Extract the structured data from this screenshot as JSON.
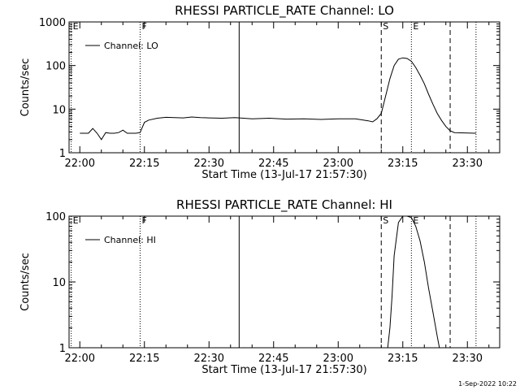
{
  "timestamp": "1-Sep-2022 10:22",
  "chart_data": [
    {
      "type": "line",
      "title": "RHESSI PARTICLE_RATE Channel: LO",
      "xlabel": "Start Time (13-Jul-17 21:57:30)",
      "ylabel": "Counts/sec",
      "y_scale": "log",
      "ylim": [
        1,
        1000
      ],
      "xlim": [
        "21:57:30",
        "23:37:30"
      ],
      "x_ticks": [
        "22:00",
        "22:15",
        "22:30",
        "22:45",
        "23:00",
        "23:15",
        "23:30"
      ],
      "y_ticks": [
        "1",
        "10",
        "100",
        "1000"
      ],
      "legend": {
        "label": "Channel: LO",
        "position": "top-left"
      },
      "event_markers": [
        {
          "label": "E",
          "time": "21:58:00",
          "style": "dotted"
        },
        {
          "label": "F",
          "time": "22:14:00",
          "style": "dotted"
        },
        {
          "label": "",
          "time": "22:37:00",
          "style": "solid"
        },
        {
          "label": "S",
          "time": "23:10:00",
          "style": "dashed"
        },
        {
          "label": "E",
          "time": "23:17:00",
          "style": "dotted"
        },
        {
          "label": "",
          "time": "23:26:00",
          "style": "dashed"
        },
        {
          "label": "",
          "time": "23:32:00",
          "style": "dotted"
        }
      ],
      "series": [
        {
          "name": "Channel: LO",
          "x": [
            "22:00",
            "22:02",
            "22:03",
            "22:04",
            "22:05",
            "22:06",
            "22:07",
            "22:08",
            "22:09",
            "22:10",
            "22:11",
            "22:12",
            "22:13",
            "22:14",
            "22:15",
            "22:16",
            "22:18",
            "22:20",
            "22:22",
            "22:24",
            "22:26",
            "22:28",
            "22:30",
            "22:33",
            "22:36",
            "22:40",
            "22:44",
            "22:48",
            "22:52",
            "22:56",
            "23:00",
            "23:04",
            "23:07",
            "23:08",
            "23:09",
            "23:10",
            "23:11",
            "23:12",
            "23:13",
            "23:14",
            "23:15",
            "23:16",
            "23:17",
            "23:18",
            "23:19",
            "23:20",
            "23:21",
            "23:22",
            "23:23",
            "23:24",
            "23:25",
            "23:26",
            "23:27",
            "23:32"
          ],
          "y": [
            2.8,
            2.8,
            3.6,
            2.8,
            2.0,
            2.9,
            2.8,
            2.8,
            2.9,
            3.3,
            2.8,
            2.8,
            2.8,
            2.9,
            5.0,
            5.6,
            6.2,
            6.5,
            6.4,
            6.3,
            6.6,
            6.4,
            6.3,
            6.2,
            6.4,
            6.0,
            6.2,
            5.9,
            6.0,
            5.8,
            6.0,
            6.0,
            5.4,
            5.1,
            6.0,
            8,
            20,
            50,
            100,
            140,
            150,
            145,
            125,
            90,
            60,
            38,
            22,
            13,
            8,
            5.5,
            4.0,
            3.2,
            2.9,
            2.8
          ]
        }
      ]
    },
    {
      "type": "line",
      "title": "RHESSI PARTICLE_RATE Channel: HI",
      "xlabel": "Start Time (13-Jul-17 21:57:30)",
      "ylabel": "Counts/sec",
      "y_scale": "log",
      "ylim": [
        1,
        100
      ],
      "xlim": [
        "21:57:30",
        "23:37:30"
      ],
      "x_ticks": [
        "22:00",
        "22:15",
        "22:30",
        "22:45",
        "23:00",
        "23:15",
        "23:30"
      ],
      "y_ticks": [
        "1",
        "10",
        "100"
      ],
      "legend": {
        "label": "Channel: HI",
        "position": "top-left"
      },
      "event_markers": [
        {
          "label": "E",
          "time": "21:58:00",
          "style": "dotted"
        },
        {
          "label": "F",
          "time": "22:14:00",
          "style": "dotted"
        },
        {
          "label": "",
          "time": "22:37:00",
          "style": "solid"
        },
        {
          "label": "S",
          "time": "23:10:00",
          "style": "dashed"
        },
        {
          "label": "E",
          "time": "23:17:00",
          "style": "dotted"
        },
        {
          "label": "",
          "time": "23:26:00",
          "style": "dashed"
        },
        {
          "label": "",
          "time": "23:32:00",
          "style": "dotted"
        }
      ],
      "series": [
        {
          "name": "Channel: HI",
          "x": [
            "23:11:30",
            "23:12:00",
            "23:12:30",
            "23:13:00",
            "23:14:00",
            "23:15:00",
            "23:16:00",
            "23:17:00",
            "23:18:00",
            "23:19:00",
            "23:20:00",
            "23:21:00",
            "23:22:00",
            "23:23:00",
            "23:23:30"
          ],
          "y": [
            1.0,
            2.0,
            6,
            25,
            80,
            100,
            100,
            95,
            70,
            42,
            20,
            8,
            3.5,
            1.5,
            1.0
          ]
        }
      ]
    }
  ]
}
